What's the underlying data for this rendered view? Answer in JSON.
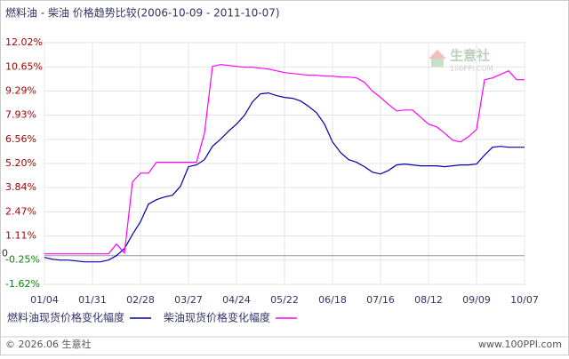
{
  "chart_data": {
    "type": "line",
    "title": "燃料油 - 柴油 价格趋势比较(2006-10-09 - 2011-10-07)",
    "xtick_labels": [
      "01/04",
      "01/31",
      "02/28",
      "03/27",
      "04/24",
      "05/22",
      "06/18",
      "07/16",
      "08/12",
      "09/09",
      "10/07"
    ],
    "ylim": [
      -1.62,
      12.02
    ],
    "yticks": [
      {
        "value": 12.02,
        "label": "12.02%"
      },
      {
        "value": 10.65,
        "label": "10.65%"
      },
      {
        "value": 9.29,
        "label": "9.29%"
      },
      {
        "value": 7.93,
        "label": "7.93%"
      },
      {
        "value": 6.56,
        "label": "6.56%"
      },
      {
        "value": 5.2,
        "label": "5.20%"
      },
      {
        "value": 3.84,
        "label": "3.84%"
      },
      {
        "value": 2.47,
        "label": "2.47%"
      },
      {
        "value": 1.11,
        "label": "1.11%"
      },
      {
        "value": -0.25,
        "label": "-0.25%"
      },
      {
        "value": -1.62,
        "label": "-1.62%"
      }
    ],
    "zero_line": 0,
    "grid": true,
    "series": [
      {
        "name": "燃料油现货价格变化幅度",
        "color": "#0000aa",
        "values": [
          -0.1,
          -0.2,
          -0.25,
          -0.25,
          -0.3,
          -0.35,
          -0.35,
          -0.35,
          -0.25,
          0.0,
          0.4,
          1.2,
          1.91,
          2.91,
          3.16,
          3.31,
          3.41,
          3.91,
          5.02,
          5.12,
          5.42,
          6.17,
          6.57,
          7.02,
          7.42,
          7.92,
          8.68,
          9.13,
          9.18,
          9.03,
          8.93,
          8.88,
          8.73,
          8.43,
          8.07,
          7.42,
          6.42,
          5.82,
          5.42,
          5.27,
          5.02,
          4.71,
          4.61,
          4.81,
          5.12,
          5.17,
          5.12,
          5.07,
          5.07,
          5.07,
          5.02,
          5.07,
          5.12,
          5.12,
          5.17,
          5.67,
          6.12,
          6.17,
          6.12,
          6.12,
          6.12
        ]
      },
      {
        "name": "柴油现货价格变化幅度",
        "color": "#ff00ff",
        "values": [
          0.1,
          0.1,
          0.1,
          0.1,
          0.1,
          0.1,
          0.1,
          0.1,
          0.1,
          0.65,
          0.15,
          4.16,
          4.66,
          4.66,
          5.27,
          5.27,
          5.27,
          5.27,
          5.27,
          5.27,
          6.92,
          10.68,
          10.78,
          10.73,
          10.68,
          10.63,
          10.63,
          10.58,
          10.53,
          10.43,
          10.33,
          10.28,
          10.23,
          10.18,
          10.18,
          10.13,
          10.13,
          10.08,
          10.08,
          10.03,
          9.78,
          9.28,
          8.93,
          8.53,
          8.17,
          8.22,
          8.22,
          7.82,
          7.42,
          7.27,
          6.92,
          6.52,
          6.42,
          6.72,
          7.12,
          9.93,
          10.03,
          10.23,
          10.43,
          9.93,
          9.93
        ]
      }
    ],
    "watermark": {
      "name": "生意社",
      "site": "100PPI.COM"
    },
    "footer": {
      "copyright": "© 2026.06 生意社",
      "url": "www.100PPI.com"
    }
  }
}
